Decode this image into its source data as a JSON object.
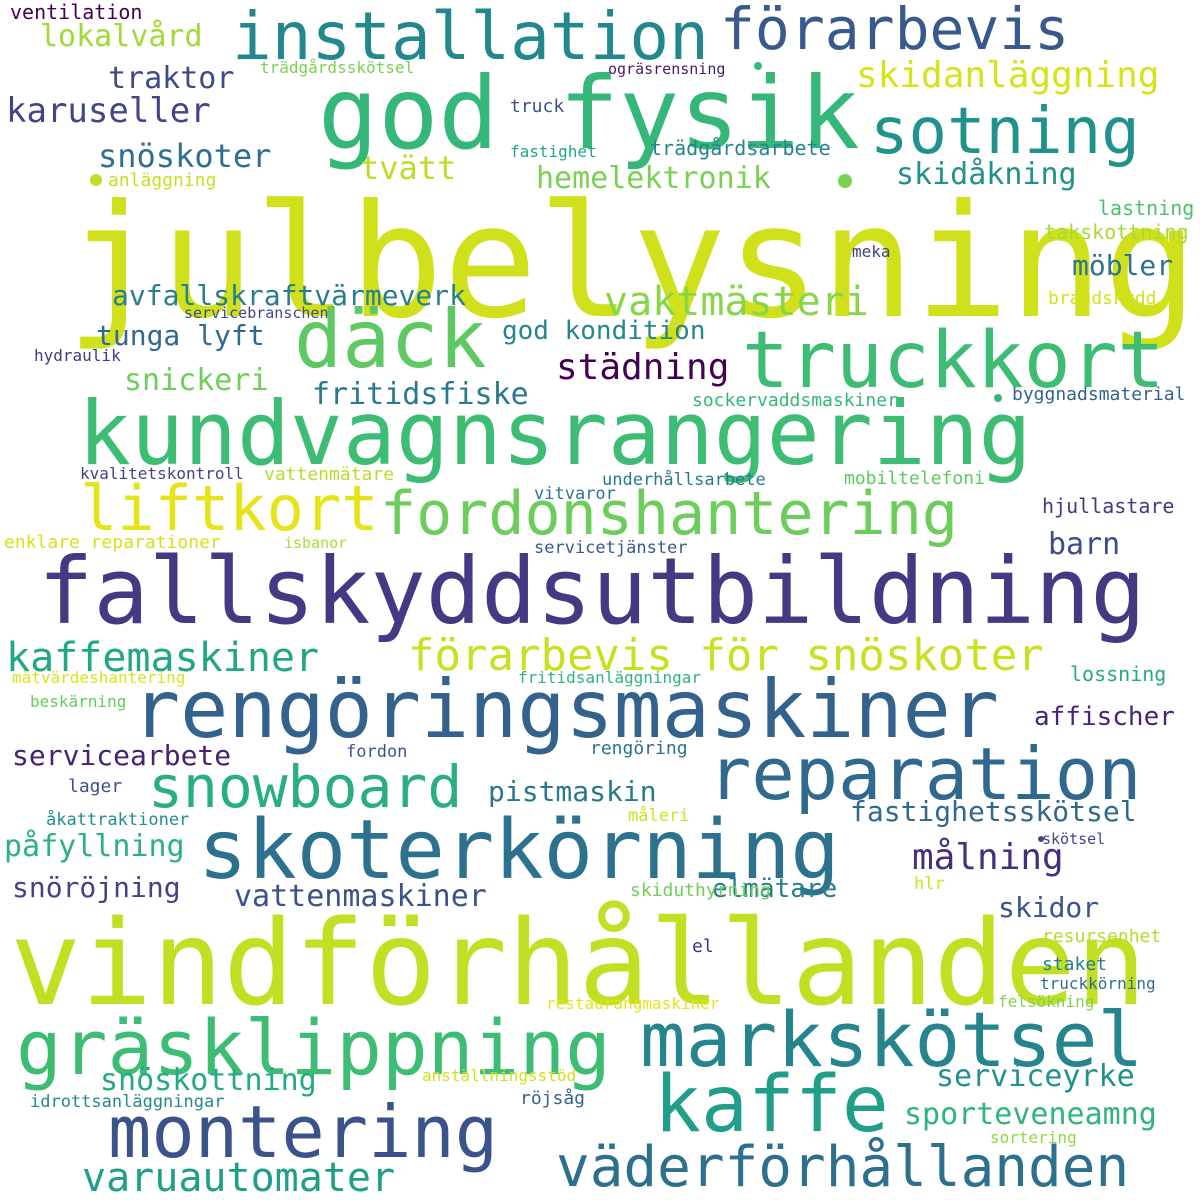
{
  "words": [
    {
      "text": "julbelysning",
      "color": "#d0e11c"
    },
    {
      "text": "vindförhållanden",
      "color": "#c2df23"
    },
    {
      "text": "fallskyddsutbildning",
      "color": "#443983"
    },
    {
      "text": "kundvagnsrangering",
      "color": "#3dbc74"
    },
    {
      "text": "rengöringsmaskiner",
      "color": "#33638d"
    },
    {
      "text": "skoterkörning",
      "color": "#2c728e"
    },
    {
      "text": "god fysik",
      "color": "#35b779"
    },
    {
      "text": "truckkort",
      "color": "#3dbc74"
    },
    {
      "text": "gräsklippning",
      "color": "#3dbc74"
    },
    {
      "text": "markskötsel",
      "color": "#25848e"
    },
    {
      "text": "däck",
      "color": "#5ec962"
    },
    {
      "text": "reparation",
      "color": "#31688e"
    },
    {
      "text": "kaffe",
      "color": "#1f9e89"
    },
    {
      "text": "montering",
      "color": "#3b528b"
    },
    {
      "text": "väderförhållanden",
      "color": "#2d708e"
    },
    {
      "text": "installation",
      "color": "#23888e"
    },
    {
      "text": "sotning",
      "color": "#20928c"
    },
    {
      "text": "förarbevis",
      "color": "#38598c"
    },
    {
      "text": "fordonshantering",
      "color": "#6ccd5a"
    },
    {
      "text": "liftkort",
      "color": "#e5e419"
    },
    {
      "text": "snowboard",
      "color": "#29af7f"
    },
    {
      "text": "förarbevis för snöskoter",
      "color": "#c8e020"
    },
    {
      "text": "kaffemaskiner",
      "color": "#22a785"
    },
    {
      "text": "varuautomater",
      "color": "#1f9e89"
    },
    {
      "text": "vaktmästeri",
      "color": "#89d548"
    },
    {
      "text": "skidanläggning",
      "color": "#d8e219"
    },
    {
      "text": "avfallskraftvärmeverk",
      "color": "#277f8e"
    },
    {
      "text": "karuseller",
      "color": "#414487"
    },
    {
      "text": "sporteveneamng",
      "color": "#2fb47c"
    },
    {
      "text": "serviceyrke",
      "color": "#21918c"
    },
    {
      "text": "målning",
      "color": "#472d7b"
    },
    {
      "text": "snöskottning",
      "color": "#23a983"
    },
    {
      "text": "fastighetsskötsel",
      "color": "#31688e"
    },
    {
      "text": "pistmaskin",
      "color": "#2a788e"
    },
    {
      "text": "städning",
      "color": "#440154"
    },
    {
      "text": "fritidsfiske",
      "color": "#2a788e"
    },
    {
      "text": "hemelektronik",
      "color": "#7ad151"
    },
    {
      "text": "snöskoter",
      "color": "#2e6e8e"
    },
    {
      "text": "skidåkning",
      "color": "#21918c"
    },
    {
      "text": "traktor",
      "color": "#3e4a89"
    },
    {
      "text": "lokalvård",
      "color": "#a0da39"
    },
    {
      "text": "tvätt",
      "color": "#bade28"
    },
    {
      "text": "möbler",
      "color": "#2c738e"
    },
    {
      "text": "tunga lyft",
      "color": "#31688e"
    },
    {
      "text": "god kondition",
      "color": "#24878e"
    },
    {
      "text": "snickeri",
      "color": "#6ece58"
    },
    {
      "text": "servicearbete",
      "color": "#482173"
    },
    {
      "text": "påfyllning",
      "color": "#2db27d"
    },
    {
      "text": "snöröjning",
      "color": "#414487"
    },
    {
      "text": "vattenmaskiner",
      "color": "#3b528b"
    },
    {
      "text": "elmätare",
      "color": "#277f8e"
    },
    {
      "text": "skidor",
      "color": "#39568c"
    },
    {
      "text": "barn",
      "color": "#3e4a89"
    },
    {
      "text": "affischer",
      "color": "#482576"
    },
    {
      "text": "ventilation",
      "color": "#440154"
    },
    {
      "text": "trädgårdsskötsel",
      "color": "#7ad151"
    },
    {
      "text": "ogräsrensning",
      "color": "#481a6c"
    },
    {
      "text": "truck",
      "color": "#3b528b"
    },
    {
      "text": "fastighet",
      "color": "#22a785"
    },
    {
      "text": "trädgårdsarbete",
      "color": "#25858e"
    },
    {
      "text": "anläggning",
      "color": "#c0df25"
    },
    {
      "text": "lastning",
      "color": "#4ac16d"
    },
    {
      "text": "takskottning",
      "color": "#a5db36"
    },
    {
      "text": "meka",
      "color": "#433e85"
    },
    {
      "text": "brandskydd",
      "color": "#d2e21b"
    },
    {
      "text": "servicebranschen",
      "color": "#3e4989"
    },
    {
      "text": "hydraulik",
      "color": "#453882"
    },
    {
      "text": "sockervaddsmaskiner",
      "color": "#35b779"
    },
    {
      "text": "byggnadsmaterial",
      "color": "#33638d"
    },
    {
      "text": "kvalitetskontroll",
      "color": "#414487"
    },
    {
      "text": "vattenmätare",
      "color": "#b5de2b"
    },
    {
      "text": "underhållsarbete",
      "color": "#2a788e"
    },
    {
      "text": "mobiltelefoni",
      "color": "#5ec962"
    },
    {
      "text": "vitvaror",
      "color": "#2a768e"
    },
    {
      "text": "hjullastare",
      "color": "#453882"
    },
    {
      "text": "enklare reparationer",
      "color": "#d5e21a"
    },
    {
      "text": "isbanor",
      "color": "#a8db34"
    },
    {
      "text": "servicetjänster",
      "color": "#38598c"
    },
    {
      "text": "mätvärdeshantering",
      "color": "#dde318"
    },
    {
      "text": "fritidsanläggningar",
      "color": "#2fb47c"
    },
    {
      "text": "lossning",
      "color": "#23a983"
    },
    {
      "text": "beskärning",
      "color": "#63cb5f"
    },
    {
      "text": "fordon",
      "color": "#39568c"
    },
    {
      "text": "rengöring",
      "color": "#2e6f8e"
    },
    {
      "text": "lager",
      "color": "#3b528b"
    },
    {
      "text": "åkattraktioner",
      "color": "#228d8d"
    },
    {
      "text": "måleri",
      "color": "#d2e21b"
    },
    {
      "text": "skötsel",
      "color": "#414487"
    },
    {
      "text": "skiduthyrning",
      "color": "#6ece58"
    },
    {
      "text": "hlr",
      "color": "#d2e21b"
    },
    {
      "text": "el",
      "color": "#46327e"
    },
    {
      "text": "resursenhet",
      "color": "#b0dd2f"
    },
    {
      "text": "staket",
      "color": "#277f8e"
    },
    {
      "text": "truckkörning",
      "color": "#2d708e"
    },
    {
      "text": "restaurangmaskiner",
      "color": "#e7e419"
    },
    {
      "text": "felsökning",
      "color": "#7fd34e"
    },
    {
      "text": "anställningsstöd",
      "color": "#d0e11c"
    },
    {
      "text": "idrottsanläggningar",
      "color": "#23898e"
    },
    {
      "text": "röjsåg",
      "color": "#33638d"
    },
    {
      "text": "sortering",
      "color": "#90d743"
    }
  ]
}
